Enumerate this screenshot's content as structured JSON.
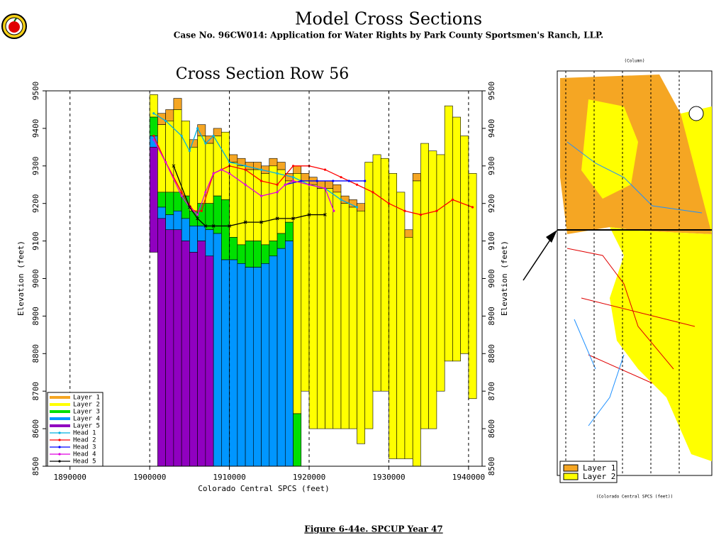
{
  "page": {
    "title": "Model Cross Sections",
    "subtitle": "Case No. 96CW014: Application for Water Rights by Park County Sportsmen's Ranch, LLP.",
    "caption": "Figure 6-44e.  SPCUP Year 47"
  },
  "map": {
    "column_label": "(Column)",
    "xlabel": "(Colorado Central SPCS (feet))",
    "legend": [
      {
        "name": "Layer 1",
        "color": "#f5a623"
      },
      {
        "name": "Layer 2",
        "color": "#ffff00"
      }
    ]
  },
  "chart_data": {
    "type": "cross-section",
    "title": "Cross Section Row 56",
    "xlabel": "Colorado Central SPCS (feet)",
    "ylabel": "Elevation (feet)",
    "xlim": [
      1887000,
      1941700
    ],
    "xticks": [
      1890000,
      1900000,
      1910000,
      1920000,
      1930000,
      1940000
    ],
    "ylim": [
      8500,
      9500
    ],
    "yticks": [
      8500,
      8600,
      8700,
      8800,
      8900,
      9000,
      9100,
      9200,
      9300,
      9400,
      9500
    ],
    "y2lim": [
      8500,
      9500
    ],
    "y2ticks": [
      8500,
      8600,
      8700,
      8800,
      8900,
      9000,
      9100,
      9200,
      9300,
      9400,
      9500
    ],
    "grid": true,
    "legend": "lower left",
    "x": [
      1900000,
      1901000,
      1902000,
      1903000,
      1904000,
      1905000,
      1906000,
      1907000,
      1908000,
      1909000,
      1910000,
      1911000,
      1912000,
      1913000,
      1914000,
      1915000,
      1916000,
      1917000,
      1918000,
      1919000,
      1920000,
      1921000,
      1922000,
      1923000,
      1924000,
      1925000,
      1926000,
      1927000,
      1928000,
      1929000,
      1930000,
      1931000,
      1932000,
      1933000,
      1934000,
      1935000,
      1936000,
      1937000,
      1938000,
      1939000,
      1940000
    ],
    "bottom": [
      9070,
      8500,
      8500,
      8500,
      8500,
      8500,
      8500,
      8500,
      8500,
      8500,
      8500,
      8500,
      8500,
      8500,
      8500,
      8500,
      8500,
      8500,
      8500,
      8700,
      8600,
      8600,
      8600,
      8600,
      8600,
      8600,
      8560,
      8600,
      8700,
      8700,
      8520,
      8520,
      8520,
      8500,
      8600,
      8600,
      8700,
      8780,
      8780,
      8800,
      8680
    ],
    "layers": [
      {
        "name": "Layer 1",
        "color": "#f5a623",
        "values": [
          null,
          9440,
          9450,
          9480,
          null,
          9370,
          9410,
          9380,
          9400,
          null,
          9330,
          9320,
          9310,
          9310,
          9300,
          9320,
          9310,
          9280,
          9300,
          9280,
          9270,
          9260,
          9260,
          9250,
          9220,
          9210,
          9200,
          null,
          null,
          null,
          null,
          null,
          9130,
          9280,
          null,
          null,
          null,
          null,
          null,
          null,
          null
        ]
      },
      {
        "name": "Layer 2",
        "color": "#ffff00",
        "values": [
          9490,
          9410,
          9420,
          9450,
          9420,
          9350,
          9380,
          9360,
          9380,
          9390,
          9310,
          9300,
          9290,
          9290,
          9280,
          9300,
          9290,
          9260,
          9280,
          9260,
          9250,
          9240,
          9240,
          9230,
          9200,
          9190,
          9180,
          9310,
          9330,
          9320,
          9280,
          9230,
          9110,
          9260,
          9360,
          9340,
          9330,
          9460,
          9430,
          9380,
          9280
        ]
      },
      {
        "name": "Layer 3",
        "color": "#00e000",
        "values": [
          9430,
          9230,
          9230,
          9230,
          9220,
          9180,
          9200,
          9200,
          9220,
          9210,
          9110,
          9090,
          9100,
          9100,
          9090,
          9100,
          9120,
          9150,
          8640,
          null,
          null,
          null,
          null,
          null,
          null,
          null,
          null,
          null,
          null,
          null,
          null,
          null,
          null,
          null,
          null,
          null,
          null,
          null,
          null,
          null,
          null
        ]
      },
      {
        "name": "Layer 4",
        "color": "#0096ff",
        "values": [
          9380,
          9190,
          9170,
          9180,
          9160,
          9140,
          9140,
          9130,
          9120,
          9050,
          9050,
          9040,
          9030,
          9030,
          9040,
          9060,
          9080,
          9100,
          null,
          null,
          null,
          null,
          null,
          null,
          null,
          null,
          null,
          null,
          null,
          null,
          null,
          null,
          null,
          null,
          null,
          null,
          null,
          null,
          null,
          null,
          null
        ]
      },
      {
        "name": "Layer 5",
        "color": "#9000c0",
        "values": [
          9350,
          9160,
          9130,
          9130,
          9100,
          9070,
          9100,
          9060,
          null,
          null,
          null,
          null,
          null,
          null,
          null,
          null,
          null,
          null,
          null,
          null,
          null,
          null,
          null,
          null,
          null,
          null,
          null,
          null,
          null,
          null,
          null,
          null,
          null,
          null,
          null,
          null,
          null,
          null,
          null,
          null,
          null
        ]
      }
    ],
    "heads": [
      {
        "name": "Head 1",
        "color": "#00b0e0",
        "marker": "dot",
        "x": [
          1900500,
          1902000,
          1904000,
          1905000,
          1906000,
          1907000,
          1908000,
          1910000,
          1912000,
          1914000,
          1916000,
          1918000,
          1920000,
          1922000,
          1924000,
          1926000
        ],
        "values": [
          9440,
          9420,
          9380,
          9340,
          9400,
          9360,
          9380,
          9310,
          9300,
          9290,
          9280,
          9270,
          9250,
          9240,
          9210,
          9190
        ]
      },
      {
        "name": "Head 2",
        "color": "#ff0000",
        "marker": "dot",
        "x": [
          1900500,
          1902000,
          1904000,
          1905500,
          1906500,
          1908000,
          1910000,
          1912000,
          1914000,
          1916000,
          1918000,
          1920000,
          1922000,
          1924000,
          1926000,
          1928000,
          1930000,
          1932000,
          1934000,
          1936000,
          1938000,
          1940500
        ],
        "values": [
          9380,
          9310,
          9230,
          9180,
          9180,
          9280,
          9300,
          9290,
          9260,
          9250,
          9300,
          9300,
          9290,
          9270,
          9250,
          9230,
          9200,
          9180,
          9170,
          9180,
          9210,
          9190
        ]
      },
      {
        "name": "Head 3",
        "color": "#0000ff",
        "marker": "dot",
        "x": [
          1917000,
          1919000,
          1921000,
          1923000,
          1925000,
          1927000
        ],
        "values": [
          9250,
          9260,
          9260,
          9260,
          9260,
          9260
        ]
      },
      {
        "name": "Head 4",
        "color": "#e000e0",
        "marker": "dot",
        "x": [
          1900500,
          1902000,
          1904000,
          1905000,
          1906000,
          1907000,
          1908000,
          1909000,
          1910000,
          1912000,
          1914000,
          1916000,
          1917000,
          1918000,
          1920000,
          1922000,
          1923100
        ],
        "values": [
          9370,
          9310,
          9220,
          9190,
          9170,
          9230,
          9280,
          9290,
          9280,
          9250,
          9220,
          9230,
          9250,
          9260,
          9250,
          9240,
          9180
        ]
      },
      {
        "name": "Head 5",
        "color": "#000000",
        "marker": "x",
        "x": [
          1903000,
          1905000,
          1906000,
          1907000,
          1908000,
          1910000,
          1912000,
          1914000,
          1916000,
          1918000,
          1920000,
          1922000
        ],
        "values": [
          9300,
          9190,
          9160,
          9140,
          9140,
          9140,
          9150,
          9150,
          9160,
          9160,
          9170,
          9170
        ]
      }
    ]
  }
}
